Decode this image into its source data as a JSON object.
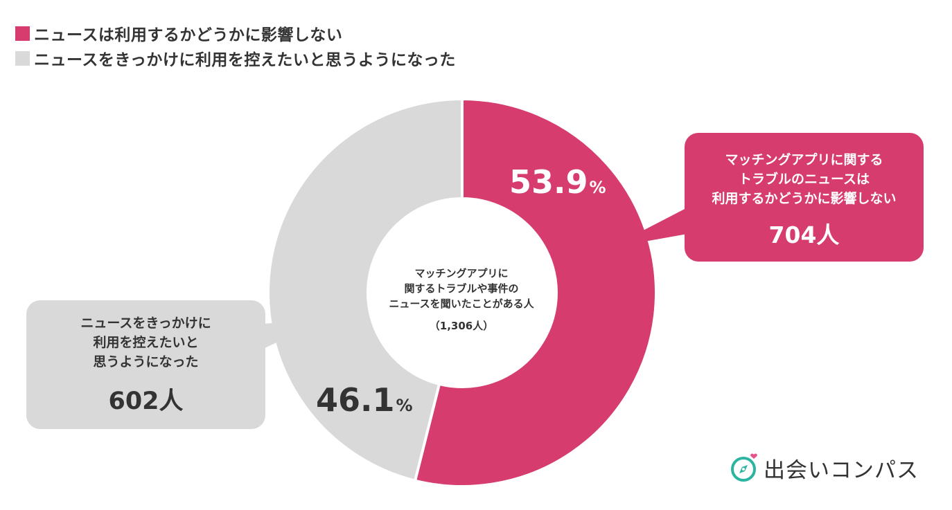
{
  "legend": [
    {
      "label": "ニュースは利用するかどうかに影響しない",
      "color": "#d63c6e"
    },
    {
      "label": "ニュースをきっかけに利用を控えたいと思うようになった",
      "color": "#d9d9d9"
    }
  ],
  "chart_data": {
    "type": "pie",
    "donut": true,
    "categories": [
      "ニュースは利用するかどうかに影響しない",
      "ニュースをきっかけに利用を控えたいと思うようになった"
    ],
    "values": [
      53.9,
      46.1
    ],
    "counts": [
      704,
      602
    ],
    "colors": [
      "#d63c6e",
      "#d9d9d9"
    ],
    "legend_position": "top-left"
  },
  "labels": {
    "slice_a_pct": "53.9",
    "slice_b_pct": "46.1",
    "pct_unit": "%"
  },
  "center": {
    "line1": "マッチングアプリに",
    "line2": "関するトラブルや事件の",
    "line3": "ニュースを聞いたことがある人",
    "total": "（1,306人）"
  },
  "callouts": {
    "right": {
      "line1": "マッチングアプリに関する",
      "line2": "トラブルのニュースは",
      "line3": "利用するかどうかに影響しない",
      "count": "704人"
    },
    "left": {
      "line1": "ニュースをきっかけに",
      "line2": "利用を控えたいと",
      "line3": "思うようになった",
      "count": "602人"
    }
  },
  "brand": {
    "name": "出会いコンパス",
    "icon": "compass-heart-icon",
    "accent": "#2bb5a0",
    "heart": "#e8528a"
  }
}
